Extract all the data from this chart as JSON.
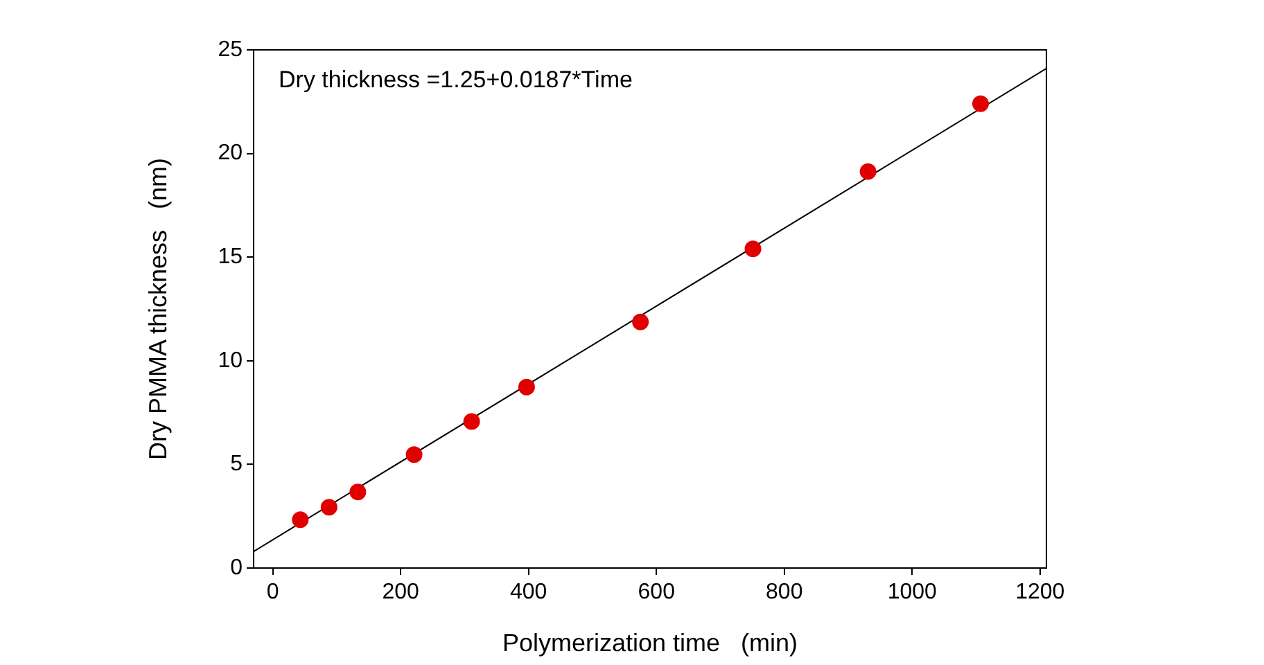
{
  "chart_data": {
    "type": "scatter",
    "xlabel": "Polymerization time   (min)",
    "ylabel": "Dry PMMA thickness   (nm)",
    "annotations": [
      "Dry thickness =1.25+0.0187*Time"
    ],
    "series": [
      {
        "marker": "circle",
        "color": "#e00000",
        "x": [
          43,
          88,
          133,
          221,
          311,
          397,
          575,
          751,
          931,
          1107
        ],
        "values": [
          2.33,
          2.93,
          3.67,
          5.47,
          7.07,
          8.73,
          11.87,
          15.4,
          19.13,
          22.4
        ]
      },
      {
        "type": "line",
        "color": "#000000",
        "x": [
          -30,
          1210
        ],
        "values": [
          0.8,
          24.1
        ]
      }
    ],
    "xlim": [
      -30,
      1210
    ],
    "xticks": [
      0,
      200,
      400,
      600,
      800,
      1000,
      1200
    ],
    "ylim": [
      0,
      25
    ],
    "yticks": [
      0,
      5,
      10,
      15,
      20,
      25
    ],
    "grid": false,
    "legend": false
  }
}
